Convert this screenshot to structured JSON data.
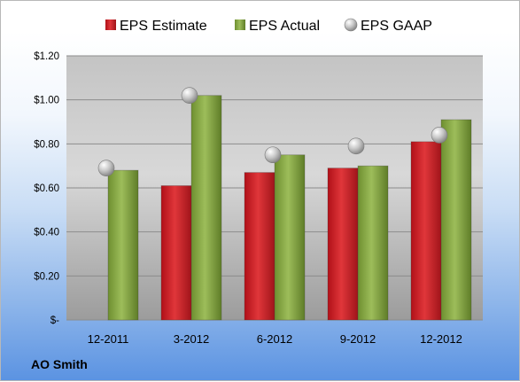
{
  "chart_data": {
    "type": "bar",
    "company": "AO Smith",
    "categories": [
      "12-2011",
      "3-2012",
      "6-2012",
      "9-2012",
      "12-2012"
    ],
    "series": [
      {
        "name": "EPS Estimate",
        "kind": "bar",
        "color": "#d0252a",
        "values": [
          null,
          0.61,
          0.67,
          0.69,
          0.81
        ]
      },
      {
        "name": "EPS Actual",
        "kind": "bar",
        "color": "#8eae48",
        "values": [
          0.68,
          1.02,
          0.75,
          0.7,
          0.91
        ]
      },
      {
        "name": "EPS GAAP",
        "kind": "marker",
        "color": "#b8b8b8",
        "values": [
          0.69,
          1.02,
          0.75,
          0.79,
          0.84
        ]
      }
    ],
    "ylim": [
      0,
      1.2
    ],
    "yticks": [
      {
        "value": 0,
        "label": "$-"
      },
      {
        "value": 0.2,
        "label": "$0.20"
      },
      {
        "value": 0.4,
        "label": "$0.40"
      },
      {
        "value": 0.6,
        "label": "$0.60"
      },
      {
        "value": 0.8,
        "label": "$0.80"
      },
      {
        "value": 1.0,
        "label": "$1.00"
      },
      {
        "value": 1.2,
        "label": "$1.20"
      }
    ],
    "legend_position": "top",
    "grid": true
  }
}
